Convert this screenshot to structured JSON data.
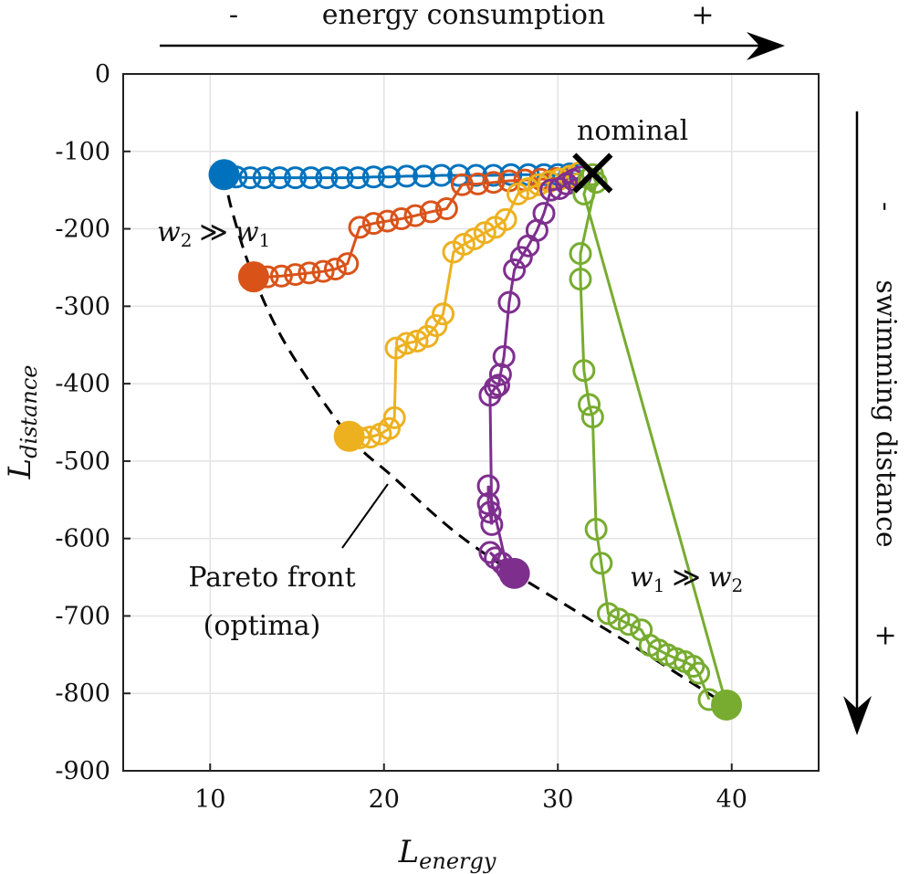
{
  "chart_data": {
    "type": "scatter",
    "xlabel": {
      "main": "L",
      "sub": "energy"
    },
    "ylabel": {
      "main": "L",
      "sub": "distance"
    },
    "xlim": [
      5,
      45
    ],
    "ylim": [
      -900,
      0
    ],
    "x_ticks": [
      10,
      20,
      30,
      40
    ],
    "y_ticks": [
      0,
      -100,
      -200,
      -300,
      -400,
      -500,
      -600,
      -700,
      -800,
      -900
    ],
    "x_tick_labels": [
      "10",
      "20",
      "30",
      "40"
    ],
    "y_tick_labels": [
      "0",
      "-100",
      "-200",
      "-300",
      "-400",
      "-500",
      "-600",
      "-700",
      "-800",
      "-900"
    ],
    "grid": true,
    "series": [
      {
        "name": "blue",
        "color": "#0072BD",
        "optimum": [
          10.8,
          -130
        ],
        "points": [
          [
            11.5,
            -133
          ],
          [
            12.3,
            -134
          ],
          [
            13.1,
            -134
          ],
          [
            14.0,
            -134
          ],
          [
            14.9,
            -134
          ],
          [
            15.8,
            -134
          ],
          [
            16.7,
            -134
          ],
          [
            17.6,
            -134
          ],
          [
            18.5,
            -134
          ],
          [
            19.4,
            -133
          ],
          [
            20.3,
            -133
          ],
          [
            21.3,
            -132
          ],
          [
            22.3,
            -132
          ],
          [
            23.3,
            -131
          ],
          [
            24.3,
            -131
          ],
          [
            25.3,
            -131
          ],
          [
            26.3,
            -131
          ],
          [
            27.3,
            -130
          ],
          [
            28.3,
            -130
          ],
          [
            29.2,
            -130
          ],
          [
            30.0,
            -130
          ],
          [
            30.7,
            -129
          ],
          [
            31.3,
            -129
          ]
        ]
      },
      {
        "name": "orange",
        "color": "#D95319",
        "optimum": [
          12.5,
          -262
        ],
        "points": [
          [
            13.3,
            -262
          ],
          [
            14.1,
            -261
          ],
          [
            14.9,
            -259
          ],
          [
            15.7,
            -257
          ],
          [
            16.5,
            -255
          ],
          [
            17.2,
            -252
          ],
          [
            17.9,
            -245
          ],
          [
            18.6,
            -198
          ],
          [
            19.4,
            -193
          ],
          [
            20.2,
            -190
          ],
          [
            21.0,
            -187
          ],
          [
            21.8,
            -183
          ],
          [
            22.7,
            -178
          ],
          [
            23.6,
            -174
          ],
          [
            24.5,
            -143
          ],
          [
            25.4,
            -142
          ],
          [
            26.3,
            -140
          ],
          [
            27.2,
            -138
          ],
          [
            28.1,
            -137
          ],
          [
            29.0,
            -136
          ],
          [
            29.9,
            -135
          ],
          [
            30.7,
            -133
          ]
        ]
      },
      {
        "name": "yellow",
        "color": "#EDB120",
        "optimum": [
          18.0,
          -468
        ],
        "points": [
          [
            18.6,
            -470
          ],
          [
            19.2,
            -469
          ],
          [
            19.8,
            -465
          ],
          [
            20.3,
            -458
          ],
          [
            20.6,
            -444
          ],
          [
            20.7,
            -354
          ],
          [
            21.3,
            -348
          ],
          [
            21.9,
            -345
          ],
          [
            22.5,
            -339
          ],
          [
            23.0,
            -325
          ],
          [
            23.4,
            -310
          ],
          [
            24.0,
            -230
          ],
          [
            24.6,
            -220
          ],
          [
            25.2,
            -213
          ],
          [
            25.8,
            -205
          ],
          [
            26.4,
            -198
          ],
          [
            27.0,
            -188
          ],
          [
            27.7,
            -155
          ],
          [
            28.3,
            -148
          ],
          [
            28.9,
            -143
          ],
          [
            29.5,
            -139
          ],
          [
            30.1,
            -136
          ],
          [
            30.7,
            -132
          ],
          [
            31.2,
            -128
          ]
        ]
      },
      {
        "name": "purple",
        "color": "#7E2F8E",
        "optimum": [
          27.5,
          -645
        ],
        "points": [
          [
            26.1,
            -618
          ],
          [
            26.4,
            -625
          ],
          [
            26.8,
            -632
          ],
          [
            27.1,
            -640
          ],
          [
            26.0,
            -532
          ],
          [
            26.0,
            -555
          ],
          [
            26.1,
            -566
          ],
          [
            26.2,
            -582
          ],
          [
            26.1,
            -415
          ],
          [
            26.4,
            -405
          ],
          [
            26.6,
            -402
          ],
          [
            26.7,
            -388
          ],
          [
            26.9,
            -365
          ],
          [
            27.2,
            -295
          ],
          [
            27.5,
            -253
          ],
          [
            27.9,
            -237
          ],
          [
            28.3,
            -222
          ],
          [
            28.8,
            -202
          ],
          [
            29.2,
            -180
          ],
          [
            29.6,
            -150
          ],
          [
            30.1,
            -148
          ],
          [
            30.5,
            -142
          ],
          [
            30.9,
            -137
          ],
          [
            31.3,
            -133
          ]
        ]
      },
      {
        "name": "green",
        "color": "#77AC30",
        "optimum": [
          39.7,
          -815
        ],
        "points": [
          [
            31.5,
            -155
          ],
          [
            31.8,
            -135
          ],
          [
            32.0,
            -130
          ],
          [
            32.2,
            -140
          ],
          [
            31.3,
            -232
          ],
          [
            31.3,
            -265
          ],
          [
            31.5,
            -383
          ],
          [
            31.8,
            -427
          ],
          [
            32.0,
            -443
          ],
          [
            32.2,
            -588
          ],
          [
            32.5,
            -632
          ],
          [
            32.9,
            -697
          ],
          [
            33.5,
            -704
          ],
          [
            34.1,
            -711
          ],
          [
            34.8,
            -718
          ],
          [
            35.3,
            -738
          ],
          [
            35.8,
            -744
          ],
          [
            36.3,
            -750
          ],
          [
            36.8,
            -755
          ],
          [
            37.3,
            -759
          ],
          [
            37.8,
            -765
          ],
          [
            38.1,
            -774
          ],
          [
            38.7,
            -808
          ]
        ]
      }
    ],
    "pareto_front": [
      [
        10.8,
        -130
      ],
      [
        11.3,
        -180
      ],
      [
        12.5,
        -262
      ],
      [
        14.5,
        -355
      ],
      [
        18.0,
        -468
      ],
      [
        20.5,
        -520
      ],
      [
        24.0,
        -590
      ],
      [
        27.5,
        -645
      ],
      [
        31.5,
        -700
      ],
      [
        35.5,
        -755
      ],
      [
        39.7,
        -815
      ]
    ],
    "nominal": [
      32.0,
      -128
    ],
    "annotations": {
      "nominal": "nominal",
      "w2_gg_w1": {
        "a": "w",
        "a_sub": "2",
        "op": "≫",
        "b": "w",
        "b_sub": "1"
      },
      "w1_gg_w2": {
        "a": "w",
        "a_sub": "1",
        "op": "≫",
        "b": "w",
        "b_sub": "2"
      },
      "pareto_line1": "Pareto front",
      "pareto_line2": "(optima)",
      "top_arrow": {
        "minus": "-",
        "label": "energy consumption",
        "plus": "+"
      },
      "right_arrow": {
        "minus": "-",
        "label": "swimming distance",
        "plus": "+"
      }
    }
  }
}
